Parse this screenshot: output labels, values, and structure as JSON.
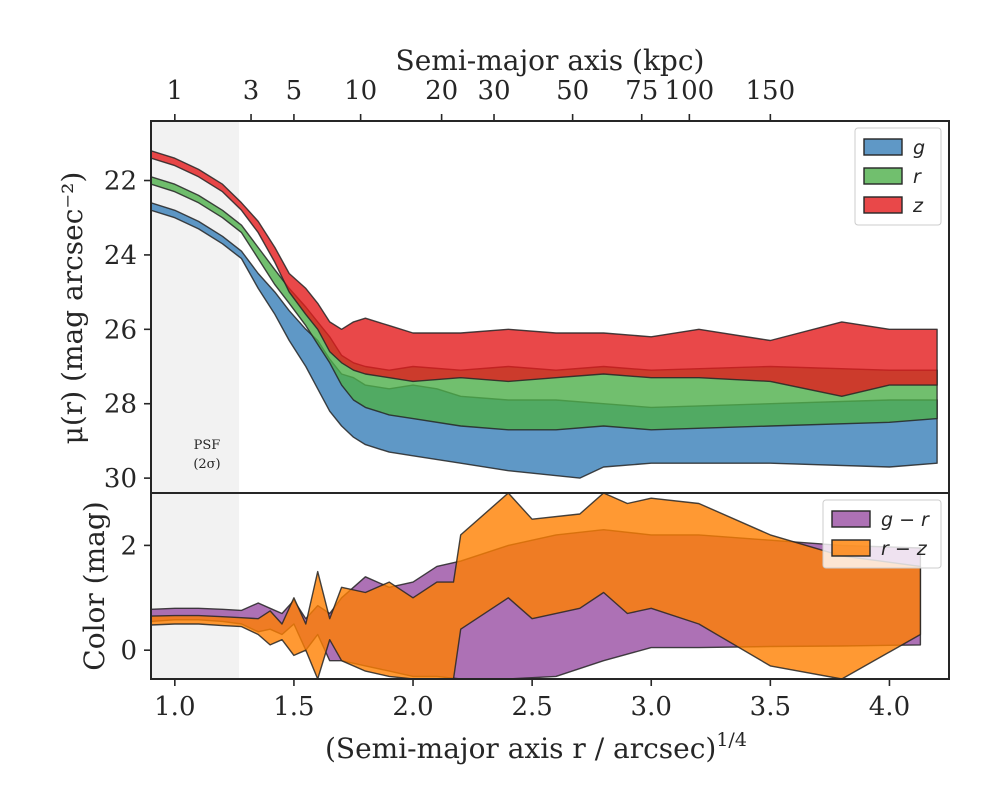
{
  "colors": {
    "g": "#377eb8",
    "r": "#4daf4a",
    "z": "#e41a1c",
    "g_minus_r": "#984ea3",
    "r_minus_z": "#ff7f00",
    "psf_band": "#eeeeee"
  },
  "top_axis": {
    "label": "Semi-major axis (kpc)",
    "ticks": [
      {
        "label": "1",
        "x": 1.0
      },
      {
        "label": "3",
        "x": 1.32
      },
      {
        "label": "5",
        "x": 1.5
      },
      {
        "label": "10",
        "x": 1.78
      },
      {
        "label": "20",
        "x": 2.12
      },
      {
        "label": "30",
        "x": 2.34
      },
      {
        "label": "50",
        "x": 2.67
      },
      {
        "label": "75",
        "x": 2.96
      },
      {
        "label": "100",
        "x": 3.16
      },
      {
        "label": "150",
        "x": 3.5
      }
    ]
  },
  "psf_label": {
    "line1": "PSF",
    "line2": "(2σ)"
  },
  "chart_data": [
    {
      "type": "area",
      "panel": "surface-brightness",
      "ylabel": "μ(r) (mag arcsec⁻²)",
      "ylim": [
        30.4,
        20.4
      ],
      "xlim": [
        0.9,
        4.25
      ],
      "yticks": [
        22,
        24,
        26,
        28,
        30
      ],
      "psf_band": [
        0.9,
        1.27
      ],
      "legend_position": "top-right",
      "series": [
        {
          "name": "g",
          "key": "g",
          "upper_x": [
            0.9,
            1.0,
            1.1,
            1.2,
            1.28,
            1.35,
            1.42,
            1.48,
            1.55,
            1.6,
            1.65,
            1.7,
            1.75,
            1.8,
            1.9,
            2.0,
            2.1,
            2.2,
            2.4,
            2.6,
            2.8,
            3.0,
            3.5,
            4.0,
            4.2
          ],
          "upper_y": [
            22.6,
            22.8,
            23.1,
            23.5,
            23.9,
            24.5,
            25.0,
            25.5,
            26.0,
            26.3,
            26.8,
            27.2,
            27.3,
            27.5,
            27.6,
            27.5,
            27.6,
            27.8,
            27.9,
            27.9,
            28.0,
            28.1,
            28.0,
            27.9,
            27.9
          ],
          "lower_x": [
            0.9,
            1.0,
            1.1,
            1.2,
            1.28,
            1.35,
            1.42,
            1.48,
            1.55,
            1.6,
            1.65,
            1.7,
            1.75,
            1.8,
            1.9,
            2.0,
            2.2,
            2.4,
            2.7,
            2.8,
            3.0,
            3.5,
            4.0,
            4.2
          ],
          "lower_y": [
            22.8,
            23.0,
            23.3,
            23.7,
            24.1,
            24.9,
            25.6,
            26.3,
            27.0,
            27.6,
            28.2,
            28.6,
            28.9,
            29.1,
            29.3,
            29.4,
            29.6,
            29.8,
            30.0,
            29.7,
            29.6,
            29.6,
            29.7,
            29.6
          ]
        },
        {
          "name": "r",
          "key": "r",
          "upper_x": [
            0.9,
            1.0,
            1.1,
            1.2,
            1.28,
            1.35,
            1.42,
            1.48,
            1.55,
            1.6,
            1.65,
            1.7,
            1.75,
            1.8,
            1.9,
            2.0,
            2.2,
            2.4,
            2.6,
            2.8,
            3.0,
            3.5,
            4.0,
            4.2
          ],
          "upper_y": [
            21.9,
            22.1,
            22.4,
            22.8,
            23.2,
            23.8,
            24.4,
            24.9,
            25.4,
            25.8,
            26.2,
            26.7,
            26.9,
            27.0,
            27.1,
            27.0,
            27.1,
            27.0,
            27.1,
            27.0,
            27.1,
            27.0,
            27.1,
            27.1
          ],
          "lower_x": [
            0.9,
            1.0,
            1.1,
            1.2,
            1.28,
            1.35,
            1.42,
            1.48,
            1.55,
            1.6,
            1.65,
            1.7,
            1.75,
            1.8,
            1.9,
            2.0,
            2.2,
            2.4,
            2.6,
            2.8,
            3.0,
            3.5,
            4.0,
            4.2
          ],
          "lower_y": [
            22.1,
            22.3,
            22.6,
            23.0,
            23.4,
            24.1,
            24.8,
            25.3,
            25.9,
            26.4,
            26.9,
            27.5,
            27.9,
            28.1,
            28.3,
            28.4,
            28.6,
            28.7,
            28.7,
            28.6,
            28.7,
            28.6,
            28.5,
            28.4
          ]
        },
        {
          "name": "z",
          "key": "z",
          "upper_x": [
            0.9,
            1.0,
            1.1,
            1.2,
            1.28,
            1.35,
            1.42,
            1.48,
            1.55,
            1.6,
            1.65,
            1.7,
            1.75,
            1.8,
            1.9,
            2.0,
            2.2,
            2.4,
            2.6,
            2.8,
            3.0,
            3.2,
            3.5,
            3.8,
            4.0,
            4.2
          ],
          "upper_y": [
            21.2,
            21.4,
            21.7,
            22.1,
            22.6,
            23.1,
            23.8,
            24.5,
            24.9,
            25.3,
            25.8,
            26.0,
            25.8,
            25.7,
            25.9,
            26.1,
            26.1,
            26.0,
            26.1,
            26.1,
            26.2,
            26.0,
            26.3,
            25.8,
            26.0,
            26.0
          ],
          "lower_x": [
            0.9,
            1.0,
            1.1,
            1.2,
            1.28,
            1.35,
            1.42,
            1.48,
            1.55,
            1.6,
            1.65,
            1.7,
            1.75,
            1.8,
            1.9,
            2.0,
            2.2,
            2.4,
            2.6,
            2.8,
            3.0,
            3.2,
            3.5,
            3.8,
            4.0,
            4.2
          ],
          "lower_y": [
            21.4,
            21.6,
            21.9,
            22.3,
            22.8,
            23.4,
            24.2,
            25.0,
            25.6,
            26.0,
            26.6,
            26.9,
            27.1,
            27.2,
            27.3,
            27.4,
            27.3,
            27.4,
            27.3,
            27.2,
            27.3,
            27.3,
            27.4,
            27.8,
            27.5,
            27.5
          ]
        }
      ]
    },
    {
      "type": "area",
      "panel": "color",
      "xlabel": "(Semi-major axis r / arcsec)",
      "xlabel_sup": "1/4",
      "ylabel": "Color (mag)",
      "ylim": [
        -0.55,
        3.0
      ],
      "xlim": [
        0.9,
        4.25
      ],
      "xticks": [
        1.0,
        1.5,
        2.0,
        2.5,
        3.0,
        3.5,
        4.0
      ],
      "xtick_labels": [
        "1.0",
        "1.5",
        "2.0",
        "2.5",
        "3.0",
        "3.5",
        "4.0"
      ],
      "yticks": [
        0,
        2
      ],
      "psf_band": [
        0.9,
        1.27
      ],
      "legend_position": "top-right",
      "series": [
        {
          "name": "g − r",
          "key": "g_minus_r",
          "upper_x": [
            0.9,
            1.0,
            1.1,
            1.2,
            1.28,
            1.35,
            1.4,
            1.45,
            1.5,
            1.55,
            1.6,
            1.65,
            1.7,
            1.8,
            1.9,
            2.0,
            2.1,
            2.2,
            2.4,
            2.6,
            2.8,
            3.0,
            3.2,
            3.5,
            3.8,
            4.13
          ],
          "upper_y": [
            0.78,
            0.8,
            0.8,
            0.78,
            0.76,
            0.9,
            0.8,
            0.7,
            0.95,
            0.6,
            0.85,
            0.7,
            1.0,
            1.4,
            1.2,
            1.3,
            1.6,
            1.7,
            2.0,
            2.2,
            2.3,
            2.2,
            2.2,
            2.1,
            2.0,
            1.95
          ],
          "lower_x": [
            0.9,
            1.0,
            1.1,
            1.2,
            1.28,
            1.35,
            1.4,
            1.45,
            1.5,
            1.55,
            1.6,
            1.65,
            1.7,
            1.8,
            1.9,
            2.0,
            2.1,
            2.2,
            2.4,
            2.6,
            2.8,
            3.0,
            3.2,
            3.5,
            3.8,
            4.13
          ],
          "lower_y": [
            0.55,
            0.58,
            0.58,
            0.55,
            0.5,
            0.35,
            0.4,
            0.3,
            0.5,
            0.0,
            0.3,
            -0.2,
            -0.2,
            -0.3,
            -0.4,
            -0.5,
            -0.5,
            -0.55,
            -0.55,
            -0.5,
            -0.2,
            0.05,
            0.05,
            0.07,
            0.08,
            0.1
          ]
        },
        {
          "name": "r − z",
          "key": "r_minus_z",
          "upper_x": [
            0.9,
            1.0,
            1.1,
            1.2,
            1.28,
            1.35,
            1.4,
            1.45,
            1.5,
            1.55,
            1.6,
            1.65,
            1.7,
            1.8,
            1.9,
            2.0,
            2.1,
            2.17,
            2.2,
            2.4,
            2.5,
            2.7,
            2.8,
            2.9,
            3.0,
            3.2,
            3.5,
            3.8,
            4.13
          ],
          "upper_y": [
            0.65,
            0.66,
            0.66,
            0.64,
            0.62,
            0.6,
            0.75,
            0.5,
            1.0,
            0.5,
            1.5,
            0.6,
            1.2,
            1.1,
            1.3,
            1.0,
            1.3,
            1.3,
            2.2,
            3.0,
            2.5,
            2.6,
            3.0,
            2.8,
            2.9,
            2.8,
            2.2,
            1.8,
            1.6
          ],
          "lower_x": [
            0.9,
            1.0,
            1.1,
            1.2,
            1.28,
            1.35,
            1.4,
            1.45,
            1.5,
            1.55,
            1.6,
            1.65,
            1.7,
            1.8,
            1.9,
            2.0,
            2.1,
            2.17,
            2.2,
            2.4,
            2.5,
            2.7,
            2.8,
            2.9,
            3.0,
            3.2,
            3.5,
            3.8,
            4.13
          ],
          "lower_y": [
            0.48,
            0.5,
            0.5,
            0.47,
            0.45,
            0.3,
            0.1,
            0.2,
            -0.1,
            0.0,
            -0.55,
            0.2,
            -0.2,
            -0.4,
            -0.5,
            -0.55,
            -0.55,
            -0.55,
            0.4,
            1.0,
            0.6,
            0.8,
            1.1,
            0.7,
            0.8,
            0.5,
            -0.3,
            -0.55,
            0.3
          ]
        }
      ]
    }
  ]
}
